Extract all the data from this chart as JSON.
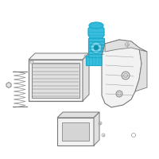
{
  "bg_color": "#ffffff",
  "fig_size": [
    2.0,
    2.0
  ],
  "dpi": 100,
  "line_color": "#999999",
  "dark_line": "#777777",
  "light_fill": "#f2f2f2",
  "mid_fill": "#e0e0e0",
  "highlight_stroke": "#1aaccc",
  "highlight_fill": "#3abcdc",
  "highlight_dark": "#1090aa"
}
